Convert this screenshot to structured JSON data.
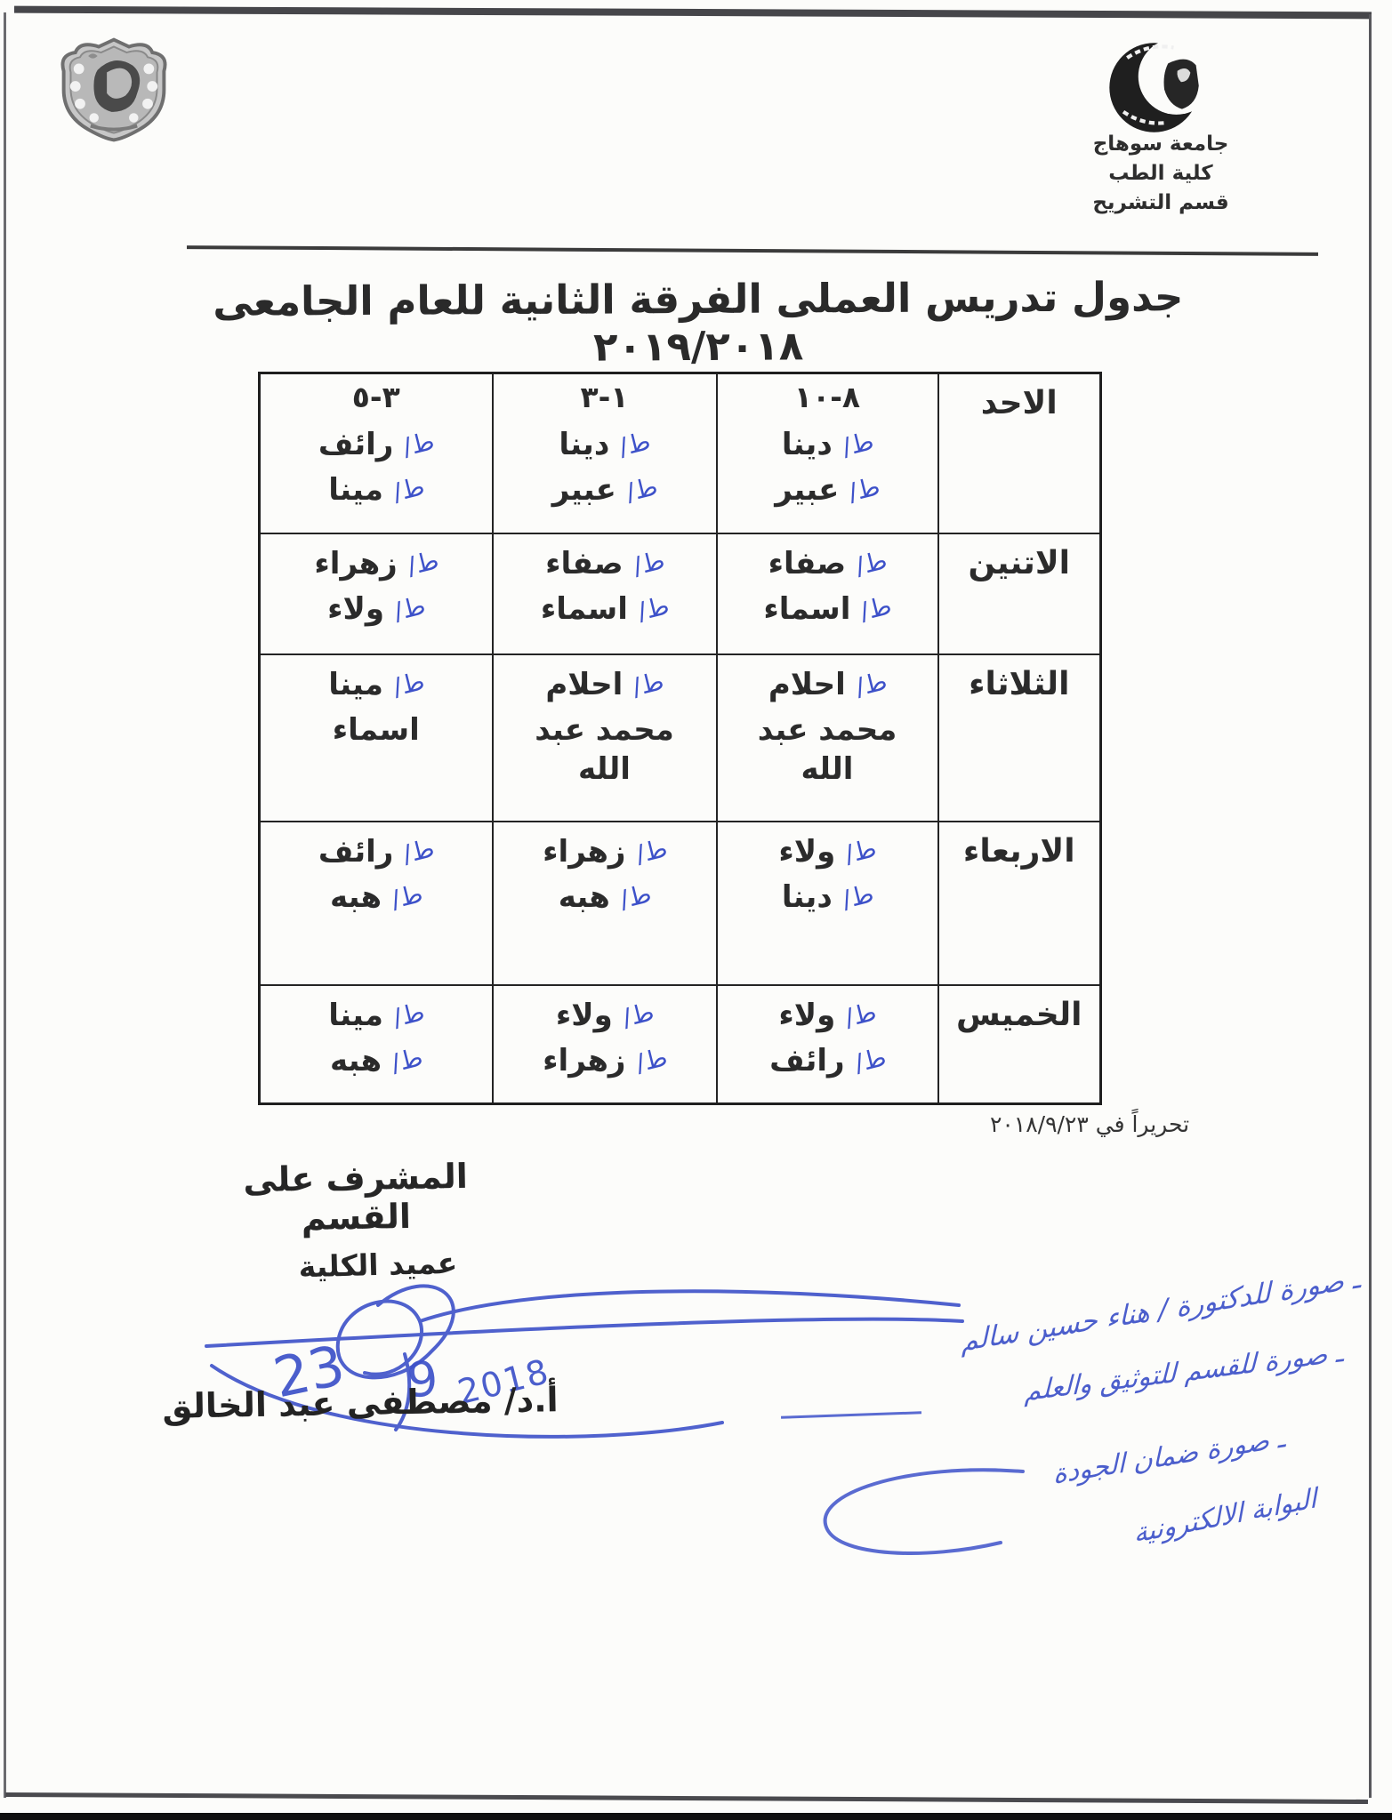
{
  "header": {
    "university": "جامعة سوهاج",
    "faculty": "كلية الطب",
    "department": "قسم التشريح"
  },
  "title": "جدول تدريس العملى الفرقة الثانية للعام الجامعى ٢٠١٩/٢٠١٨",
  "schedule": {
    "time_slots": [
      "٨-١٠",
      "١-٣",
      "٣-٥"
    ],
    "rows": [
      {
        "day": "الاحد",
        "slots": [
          [
            {
              "n": "دينا",
              "m": "ط/"
            },
            {
              "n": "عبير",
              "m": "ط/"
            }
          ],
          [
            {
              "n": "دينا",
              "m": "ط/"
            },
            {
              "n": "عبير",
              "m": "ط/"
            }
          ],
          [
            {
              "n": "رائف",
              "m": "ط/"
            },
            {
              "n": "مينا",
              "m": "ط/"
            }
          ]
        ]
      },
      {
        "day": "الاتنين",
        "slots": [
          [
            {
              "n": "صفاء",
              "m": "ط/"
            },
            {
              "n": "اسماء",
              "m": "ط/"
            }
          ],
          [
            {
              "n": "صفاء",
              "m": "ط/"
            },
            {
              "n": "اسماء",
              "m": "ط/"
            }
          ],
          [
            {
              "n": "زهراء",
              "m": "ط/"
            },
            {
              "n": "ولاء",
              "m": "ط/"
            }
          ]
        ]
      },
      {
        "day": "الثلاثاء",
        "slots": [
          [
            {
              "n": "احلام",
              "m": "ط/"
            },
            {
              "n": "محمد عبد الله",
              "m": ""
            }
          ],
          [
            {
              "n": "احلام",
              "m": "ط/"
            },
            {
              "n": "محمد عبد الله",
              "m": ""
            }
          ],
          [
            {
              "n": "مينا",
              "m": "ط/"
            },
            {
              "n": "اسماء",
              "m": ""
            }
          ]
        ]
      },
      {
        "day": "الاربعاء",
        "slots": [
          [
            {
              "n": "ولاء",
              "m": "ط/"
            },
            {
              "n": "دينا",
              "m": "ط/"
            }
          ],
          [
            {
              "n": "زهراء",
              "m": "ط/"
            },
            {
              "n": "هبه",
              "m": "ط/"
            }
          ],
          [
            {
              "n": "رائف",
              "m": "ط/"
            },
            {
              "n": "هبه",
              "m": "ط/"
            }
          ]
        ]
      },
      {
        "day": "الخميس",
        "slots": [
          [
            {
              "n": "ولاء",
              "m": "ط/"
            },
            {
              "n": "رائف",
              "m": "ط/"
            }
          ],
          [
            {
              "n": "ولاء",
              "m": "ط/"
            },
            {
              "n": "زهراء",
              "m": "ط/"
            }
          ],
          [
            {
              "n": "مينا",
              "m": "ط/"
            },
            {
              "n": "هبه",
              "m": "ط/"
            }
          ]
        ]
      }
    ]
  },
  "issued_line": "تحريراً في ٢٠١٨/٩/٢٣",
  "signatories": {
    "supervisor_title": "المشرف على القسم",
    "dean_title": "عميد الكلية",
    "dean_name": "أ.د/ مصطفى عبد الخالق"
  },
  "handwriting": {
    "ink_color": "#3d51c9",
    "signature_date": {
      "part1": "23",
      "part2": "9",
      "part3": "2018"
    },
    "notes": [
      "ـ صورة للدكتورة / هناء حسين سالم",
      "ـ صورة للقسم للتوثيق والعلم",
      "ـ صورة ضمان الجودة",
      "البوابة الالكترونية"
    ]
  }
}
